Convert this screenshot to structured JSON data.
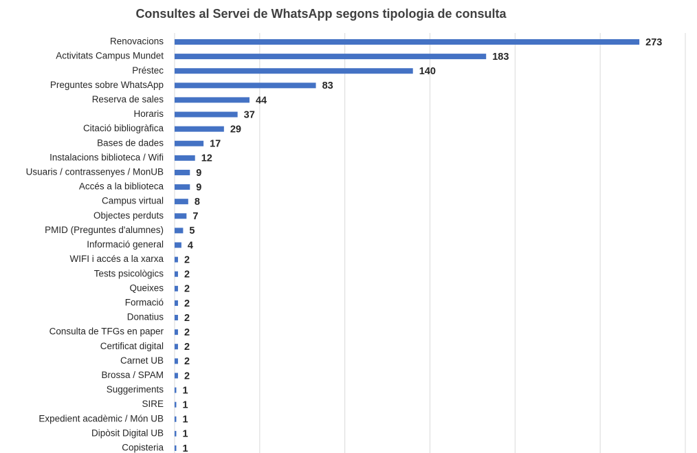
{
  "chart_data": {
    "type": "barh",
    "title": "Consultes al Servei de WhatsApp segons tipologia de consulta",
    "categories": [
      "Renovacions",
      "Activitats Campus Mundet",
      "Préstec",
      "Preguntes sobre WhatsApp",
      "Reserva de sales",
      "Horaris",
      "Citació bibliogràfica",
      "Bases de dades",
      "Instalacions biblioteca / Wifi",
      "Usuaris / contrassenyes / MonUB",
      "Accés a la biblioteca",
      "Campus virtual",
      "Objectes perduts",
      "PMID (Preguntes d'alumnes)",
      "Informació general",
      "WIFI i accés a la xarxa",
      "Tests psicològics",
      "Queixes",
      "Formació",
      "Donatius",
      "Consulta de TFGs en paper",
      "Certificat digital",
      "Carnet UB",
      "Brossa / SPAM",
      "Suggeriments",
      "SIRE",
      "Expedient acadèmic / Món UB",
      "Dipòsit Digital UB",
      "Copisteria"
    ],
    "values": [
      273,
      183,
      140,
      83,
      44,
      37,
      29,
      17,
      12,
      9,
      9,
      8,
      7,
      5,
      4,
      2,
      2,
      2,
      2,
      2,
      2,
      2,
      2,
      2,
      1,
      1,
      1,
      1,
      1
    ],
    "color": "#4472c4",
    "xlim": [
      0,
      300
    ],
    "xticks": [
      0,
      50,
      100,
      150,
      200,
      250,
      300
    ],
    "grid": true
  }
}
